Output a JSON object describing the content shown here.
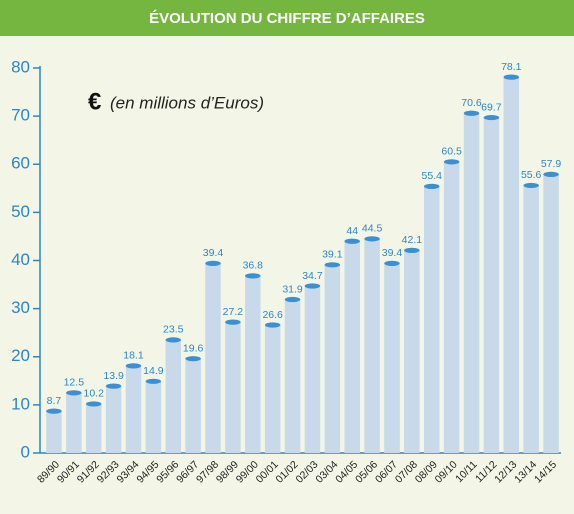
{
  "chart_data": {
    "type": "bar",
    "title": "ÉVOLUTION DU CHIFFRE D’AFFAIRES",
    "annotation_symbol": "€",
    "annotation": "(en millions d’Euros)",
    "categories": [
      "89/90",
      "90/91",
      "91/92",
      "92/93",
      "93/94",
      "94/95",
      "95/96",
      "96/97",
      "97/98",
      "98/99",
      "99/00",
      "00/01",
      "01/02",
      "02/03",
      "03/04",
      "04/05",
      "05/06",
      "06/07",
      "07/08",
      "08/09",
      "09/10",
      "10/11",
      "11/12",
      "12/13",
      "13/14",
      "14/15"
    ],
    "values": [
      8.7,
      12.5,
      10.2,
      13.9,
      18.1,
      14.9,
      23.5,
      19.6,
      39.4,
      27.2,
      36.8,
      26.6,
      31.9,
      34.7,
      39.1,
      44,
      44.5,
      39.4,
      42.1,
      55.4,
      60.5,
      70.6,
      69.7,
      78.1,
      55.6,
      57.9
    ],
    "color": "#c8d9ea",
    "cap_color": "#3a90d2",
    "ylim": [
      0,
      80
    ],
    "yticks": [
      0,
      10,
      20,
      30,
      40,
      50,
      60,
      70,
      80
    ]
  }
}
